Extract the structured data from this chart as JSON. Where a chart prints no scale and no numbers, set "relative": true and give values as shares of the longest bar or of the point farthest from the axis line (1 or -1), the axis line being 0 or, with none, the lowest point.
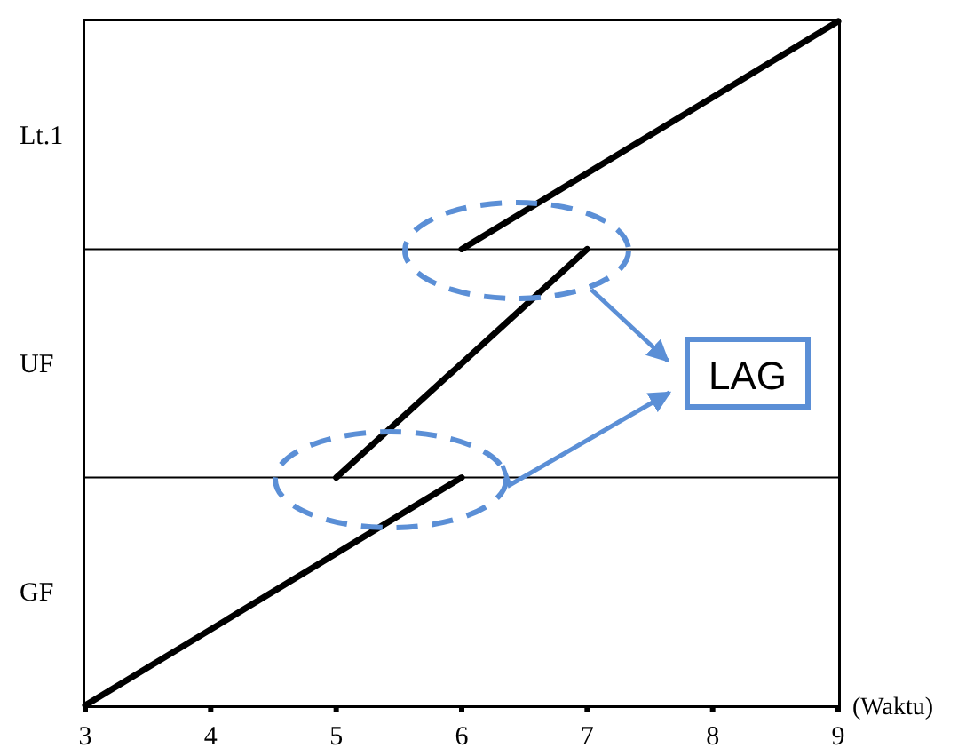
{
  "chart_data": {
    "type": "line",
    "xlabel": "(Waktu)",
    "xlim": [
      3,
      9
    ],
    "xticks": [
      3,
      4,
      5,
      6,
      7,
      8,
      9
    ],
    "relative": true,
    "marker": "none",
    "line_style": "solid",
    "series": [
      {
        "color": "#000000",
        "x": [
          3,
          6
        ],
        "values": [
          0,
          0.333
        ]
      },
      {
        "color": "#000000",
        "x": [
          5,
          7
        ],
        "values": [
          0.333,
          0.667
        ]
      },
      {
        "color": "#000000",
        "x": [
          6,
          9
        ],
        "values": [
          0.667,
          1
        ]
      }
    ],
    "ref_lines": [
      {
        "axis": "y",
        "value": 0.333,
        "color": "#000000"
      },
      {
        "axis": "y",
        "value": 0.667,
        "color": "#000000"
      }
    ],
    "bands": [
      {
        "axis": "y",
        "from": 0,
        "to": 0.333,
        "label": "GF",
        "color": "#ffffff"
      },
      {
        "axis": "y",
        "from": 0.333,
        "to": 0.667,
        "label": "UF",
        "color": "#ffffff"
      },
      {
        "axis": "y",
        "from": 0.667,
        "to": 1,
        "label": "Lt.1",
        "color": "#ffffff"
      }
    ],
    "annotations": [
      "LAG"
    ]
  }
}
